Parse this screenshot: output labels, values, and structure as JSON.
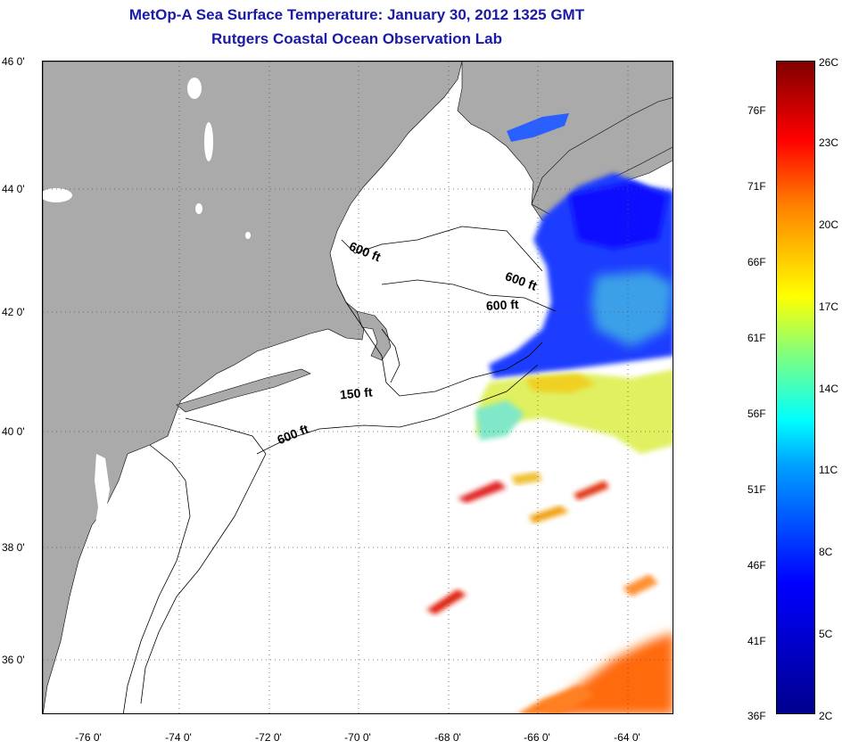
{
  "title": "MetOp-A Sea Surface Temperature:  January 30, 2012 1325 GMT",
  "subtitle": "Rutgers Coastal Ocean Observation Lab",
  "lat_labels": [
    "46 0'",
    "44 0'",
    "42 0'",
    "40 0'",
    "38 0'",
    "36 0'"
  ],
  "lon_labels": [
    "-76 0'",
    "-74 0'",
    "-72 0'",
    "-70 0'",
    "-68 0'",
    "-66 0'",
    "-64 0'"
  ],
  "contours": {
    "c1": "600 ft",
    "c2": "600 ft",
    "c3": "600 ft",
    "c4": "150 ft",
    "c5": "600 ft"
  },
  "colorbar": {
    "fahrenheit": [
      "76F",
      "71F",
      "66F",
      "61F",
      "56F",
      "51F",
      "46F",
      "41F",
      "36F"
    ],
    "celsius": [
      "26C",
      "23C",
      "20C",
      "17C",
      "14C",
      "11C",
      "8C",
      "5C",
      "2C"
    ]
  },
  "colors": {
    "land": "#aaaaaa",
    "title": "#1a1aa6"
  }
}
